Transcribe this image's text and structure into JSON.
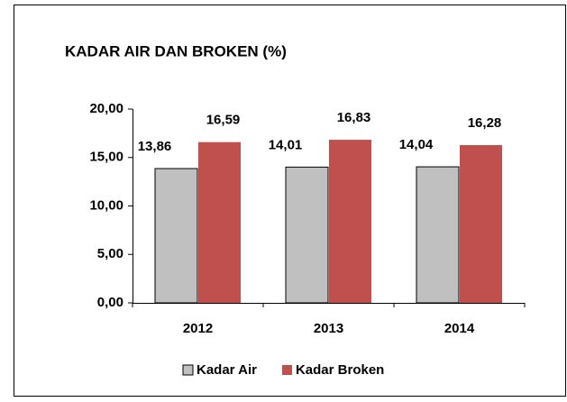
{
  "chart_data": {
    "type": "bar",
    "title": "KADAR AIR DAN BROKEN (%)",
    "categories": [
      "2012",
      "2013",
      "2014"
    ],
    "series": [
      {
        "name": "Kadar Air",
        "color": "#c0c0c0",
        "values": [
          13.86,
          14.01,
          14.04
        ],
        "value_labels": [
          "13,86",
          "14,01",
          "14,04"
        ]
      },
      {
        "name": "Kadar Broken",
        "color": "#c0504d",
        "values": [
          16.59,
          16.83,
          16.28
        ],
        "value_labels": [
          "16,59",
          "16,83",
          "16,28"
        ]
      }
    ],
    "ylim": [
      0,
      20
    ],
    "yticks": [
      {
        "value": 0,
        "label": "0,00"
      },
      {
        "value": 5,
        "label": "5,00"
      },
      {
        "value": 10,
        "label": "10,00"
      },
      {
        "value": 15,
        "label": "15,00"
      },
      {
        "value": 20,
        "label": "20,00"
      }
    ],
    "grid": false,
    "legend": "bottom"
  }
}
